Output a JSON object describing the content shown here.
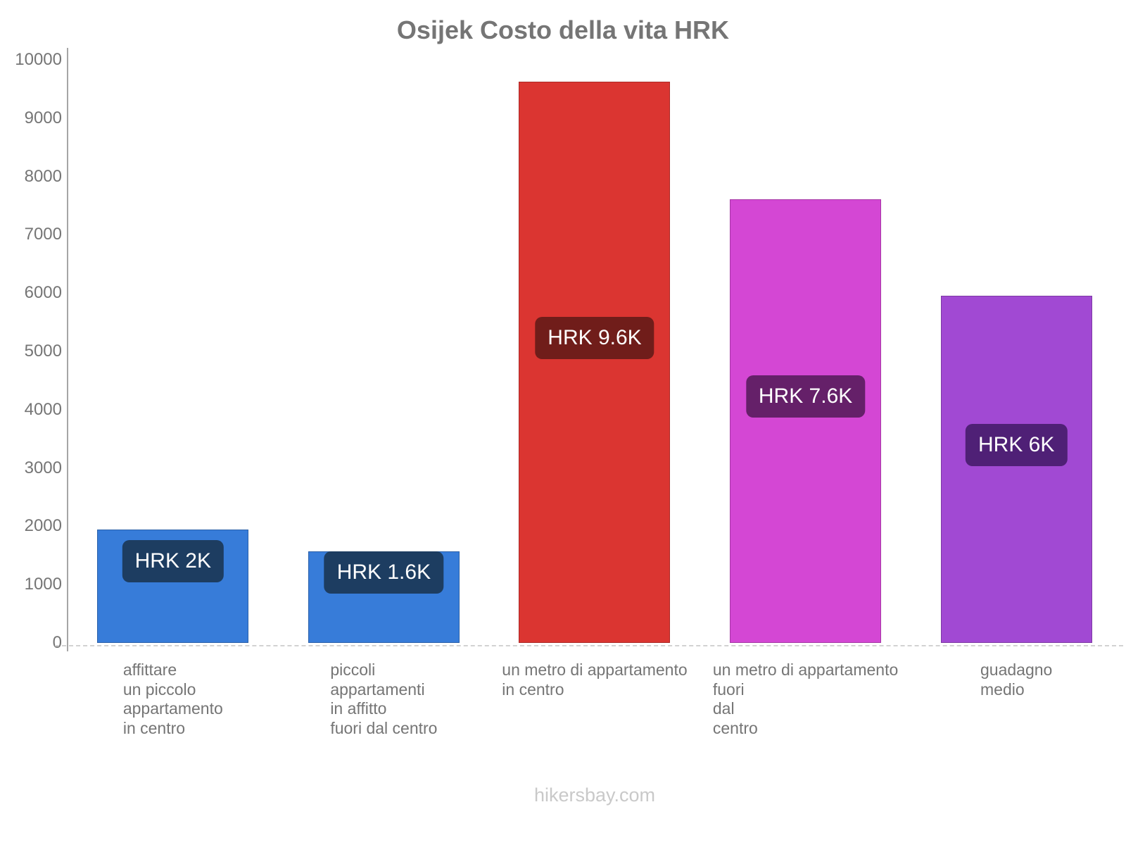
{
  "title": "Osijek Costo della vita HRK",
  "footer": "hikersbay.com",
  "colors": {
    "title_text": "#757575",
    "axis_text": "#757575",
    "axis_line": "#a6a6a6",
    "baseline_dashed": "#d2d2d2",
    "value_label_text": "#ffffff",
    "watermark_text": "#c9c9c9",
    "background": "#ffffff"
  },
  "chart_data": {
    "type": "bar",
    "title": "Osijek Costo della vita HRK",
    "currency": "HRK",
    "categories": [
      [
        "affittare",
        "un piccolo",
        "appartamento",
        "in centro"
      ],
      [
        "piccoli",
        "appartamenti",
        "in affitto",
        "fuori dal centro"
      ],
      [
        "un metro di appartamento",
        "in centro"
      ],
      [
        "un metro di appartamento",
        "fuori",
        "dal",
        "centro"
      ],
      [
        "guadagno",
        "medio"
      ]
    ],
    "values": [
      1950,
      1570,
      9620,
      7610,
      5950
    ],
    "bar_value_labels": [
      "HRK 2K",
      "HRK 1.6K",
      "HRK 9.6K",
      "HRK 7.6K",
      "HRK 6K"
    ],
    "bar_colors": [
      "#377cd9",
      "#377cd9",
      "#db3531",
      "#d447d4",
      "#a149d3"
    ],
    "bar_label_bg_colors": [
      "#1d3d61",
      "#1d3d61",
      "#701d1a",
      "#652069",
      "#4f2076"
    ],
    "xlabel": "",
    "ylabel": "",
    "ylim": [
      0,
      10000
    ],
    "yticks": [
      0,
      1000,
      2000,
      3000,
      4000,
      5000,
      6000,
      7000,
      8000,
      9000,
      10000
    ],
    "grid": false,
    "legend": false
  }
}
